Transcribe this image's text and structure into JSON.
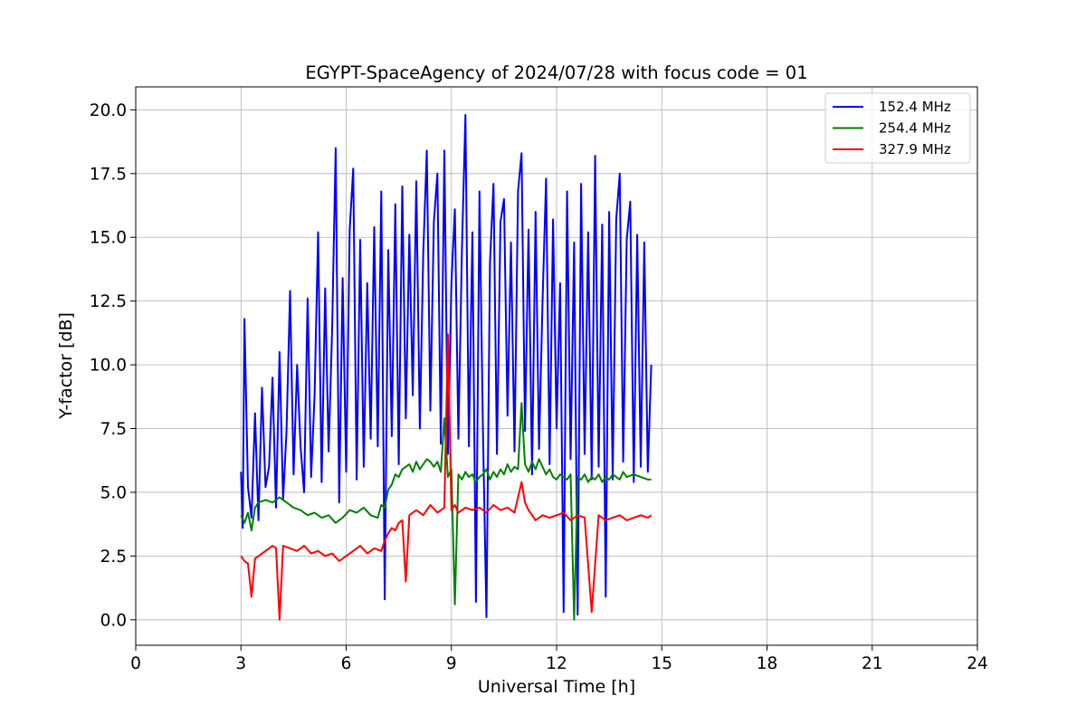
{
  "chart_data": {
    "type": "line",
    "title": "EGYPT-SpaceAgency of 2024/07/28 with focus code = 01",
    "xlabel": "Universal Time [h]",
    "ylabel": "Y-factor [dB]",
    "xlim": [
      0,
      24
    ],
    "ylim": [
      -1.0,
      20.9
    ],
    "xticks": [
      0,
      3,
      6,
      9,
      12,
      15,
      18,
      21,
      24
    ],
    "xtick_labels": [
      "0",
      "3",
      "6",
      "9",
      "12",
      "15",
      "18",
      "21",
      "24"
    ],
    "yticks": [
      0.0,
      2.5,
      5.0,
      7.5,
      10.0,
      12.5,
      15.0,
      17.5,
      20.0
    ],
    "ytick_labels": [
      "0.0",
      "2.5",
      "5.0",
      "7.5",
      "10.0",
      "12.5",
      "15.0",
      "17.5",
      "20.0"
    ],
    "grid": true,
    "legend_position": "top-right",
    "series": [
      {
        "name": "152.4 MHz",
        "color": "#0000ff",
        "x": [
          3.0,
          3.05,
          3.1,
          3.2,
          3.3,
          3.4,
          3.5,
          3.6,
          3.7,
          3.8,
          3.9,
          4.0,
          4.1,
          4.2,
          4.3,
          4.4,
          4.5,
          4.6,
          4.7,
          4.8,
          4.9,
          5.0,
          5.1,
          5.2,
          5.3,
          5.4,
          5.5,
          5.6,
          5.7,
          5.8,
          5.9,
          6.0,
          6.1,
          6.2,
          6.3,
          6.4,
          6.5,
          6.6,
          6.7,
          6.8,
          6.9,
          7.0,
          7.1,
          7.2,
          7.3,
          7.4,
          7.5,
          7.6,
          7.7,
          7.8,
          7.9,
          8.0,
          8.1,
          8.2,
          8.3,
          8.4,
          8.5,
          8.6,
          8.7,
          8.8,
          8.9,
          9.0,
          9.1,
          9.2,
          9.3,
          9.4,
          9.5,
          9.6,
          9.7,
          9.8,
          9.9,
          10.0,
          10.1,
          10.2,
          10.3,
          10.4,
          10.5,
          10.6,
          10.7,
          10.8,
          10.9,
          11.0,
          11.1,
          11.2,
          11.3,
          11.4,
          11.5,
          11.6,
          11.7,
          11.8,
          11.9,
          12.0,
          12.1,
          12.2,
          12.3,
          12.4,
          12.5,
          12.6,
          12.7,
          12.8,
          12.9,
          13.0,
          13.1,
          13.2,
          13.3,
          13.4,
          13.5,
          13.6,
          13.7,
          13.8,
          13.9,
          14.0,
          14.1,
          14.2,
          14.3,
          14.4,
          14.5,
          14.6,
          14.7
        ],
        "y": [
          5.8,
          3.6,
          11.8,
          5.2,
          4.0,
          8.1,
          3.9,
          9.1,
          5.2,
          6.0,
          9.5,
          4.4,
          10.5,
          4.7,
          7.4,
          12.9,
          5.7,
          10.0,
          6.8,
          5.0,
          12.6,
          5.6,
          8.8,
          15.2,
          5.4,
          13.0,
          6.6,
          11.4,
          18.5,
          4.6,
          13.4,
          5.8,
          15.3,
          17.7,
          5.5,
          14.9,
          6.0,
          13.2,
          7.1,
          15.4,
          6.8,
          16.8,
          0.8,
          14.5,
          7.2,
          16.3,
          6.1,
          17.0,
          7.9,
          15.1,
          8.8,
          17.2,
          7.5,
          14.4,
          18.4,
          8.2,
          15.6,
          17.5,
          6.9,
          18.4,
          6.5,
          13.2,
          16.1,
          7.1,
          14.5,
          19.8,
          6.8,
          15.2,
          0.7,
          16.8,
          7.5,
          0.1,
          14.0,
          17.1,
          6.5,
          15.6,
          16.5,
          8.0,
          14.8,
          6.6,
          16.8,
          18.3,
          7.4,
          15.3,
          5.7,
          16.0,
          6.7,
          12.5,
          17.3,
          6.1,
          15.7,
          7.5,
          13.2,
          0.3,
          16.8,
          6.3,
          14.8,
          0.2,
          17.1,
          6.5,
          15.2,
          5.5,
          18.2,
          6.0,
          15.5,
          0.9,
          16.0,
          5.5,
          15.7,
          17.5,
          6.2,
          14.9,
          16.4,
          5.4,
          15.1,
          6.0,
          14.8,
          5.8,
          10.0
        ]
      },
      {
        "name": "254.4 MHz",
        "color": "#008000",
        "x": [
          3.0,
          3.1,
          3.2,
          3.3,
          3.4,
          3.5,
          3.7,
          3.9,
          4.1,
          4.3,
          4.5,
          4.7,
          4.9,
          5.1,
          5.3,
          5.5,
          5.7,
          5.9,
          6.1,
          6.3,
          6.5,
          6.7,
          6.9,
          7.0,
          7.1,
          7.2,
          7.3,
          7.4,
          7.5,
          7.6,
          7.7,
          7.8,
          7.9,
          8.0,
          8.1,
          8.2,
          8.3,
          8.4,
          8.5,
          8.6,
          8.7,
          8.8,
          8.9,
          9.0,
          9.1,
          9.2,
          9.3,
          9.4,
          9.5,
          9.6,
          9.7,
          9.8,
          9.9,
          10.0,
          10.1,
          10.2,
          10.3,
          10.4,
          10.5,
          10.6,
          10.7,
          10.8,
          10.9,
          11.0,
          11.1,
          11.2,
          11.3,
          11.4,
          11.5,
          11.6,
          11.7,
          11.8,
          11.9,
          12.0,
          12.1,
          12.2,
          12.3,
          12.4,
          12.5,
          12.6,
          12.7,
          12.8,
          12.9,
          13.0,
          13.1,
          13.2,
          13.3,
          13.4,
          13.5,
          13.6,
          13.7,
          13.8,
          13.9,
          14.0,
          14.2,
          14.4,
          14.6,
          14.7
        ],
        "y": [
          4.1,
          3.8,
          4.2,
          3.5,
          4.4,
          4.6,
          4.7,
          4.6,
          4.8,
          4.6,
          4.4,
          4.3,
          4.1,
          4.2,
          4.0,
          4.1,
          3.8,
          4.0,
          4.3,
          4.2,
          4.4,
          4.1,
          4.0,
          4.5,
          4.4,
          5.1,
          5.3,
          5.7,
          5.6,
          5.9,
          6.0,
          6.1,
          5.8,
          6.2,
          5.9,
          6.1,
          6.3,
          6.2,
          6.0,
          6.2,
          5.8,
          7.9,
          5.6,
          5.9,
          0.6,
          5.7,
          5.5,
          5.8,
          5.6,
          5.7,
          5.4,
          5.6,
          5.7,
          5.9,
          5.5,
          5.8,
          5.6,
          5.9,
          5.7,
          6.1,
          5.8,
          6.0,
          5.9,
          8.5,
          6.1,
          5.8,
          6.2,
          5.9,
          6.3,
          6.0,
          5.7,
          5.9,
          5.6,
          5.5,
          5.7,
          5.6,
          5.5,
          5.7,
          0.0,
          5.6,
          5.5,
          5.7,
          5.4,
          5.6,
          5.5,
          5.7,
          5.4,
          5.6,
          5.5,
          5.7,
          5.6,
          5.5,
          5.8,
          5.6,
          5.7,
          5.6,
          5.5,
          5.5
        ]
      },
      {
        "name": "327.9 MHz",
        "color": "#ff0000",
        "x": [
          3.0,
          3.1,
          3.2,
          3.3,
          3.4,
          3.5,
          3.7,
          3.9,
          4.0,
          4.1,
          4.2,
          4.4,
          4.6,
          4.8,
          5.0,
          5.2,
          5.4,
          5.6,
          5.8,
          6.0,
          6.2,
          6.4,
          6.6,
          6.8,
          7.0,
          7.1,
          7.2,
          7.3,
          7.4,
          7.5,
          7.6,
          7.7,
          7.8,
          7.9,
          8.0,
          8.2,
          8.4,
          8.6,
          8.8,
          8.9,
          9.0,
          9.1,
          9.2,
          9.4,
          9.6,
          9.8,
          10.0,
          10.2,
          10.4,
          10.6,
          10.8,
          11.0,
          11.1,
          11.2,
          11.3,
          11.4,
          11.6,
          11.8,
          12.0,
          12.2,
          12.4,
          12.6,
          12.8,
          13.0,
          13.2,
          13.4,
          13.6,
          13.8,
          14.0,
          14.2,
          14.4,
          14.6,
          14.7
        ],
        "y": [
          2.5,
          2.3,
          2.2,
          0.9,
          2.4,
          2.5,
          2.7,
          2.9,
          2.8,
          0.0,
          2.9,
          2.8,
          2.7,
          2.9,
          2.6,
          2.7,
          2.5,
          2.6,
          2.3,
          2.5,
          2.7,
          2.9,
          2.6,
          2.8,
          2.7,
          3.1,
          3.4,
          3.6,
          3.5,
          3.8,
          3.9,
          1.5,
          4.1,
          4.2,
          4.3,
          4.1,
          4.5,
          4.2,
          4.4,
          11.2,
          4.3,
          4.5,
          4.2,
          4.4,
          4.3,
          4.4,
          4.2,
          4.5,
          4.3,
          4.4,
          4.2,
          5.4,
          4.6,
          4.3,
          4.1,
          3.9,
          4.1,
          4.0,
          4.1,
          4.2,
          3.9,
          4.1,
          4.0,
          0.3,
          4.1,
          3.9,
          4.0,
          4.1,
          3.9,
          4.0,
          4.1,
          4.0,
          4.1
        ]
      }
    ]
  }
}
